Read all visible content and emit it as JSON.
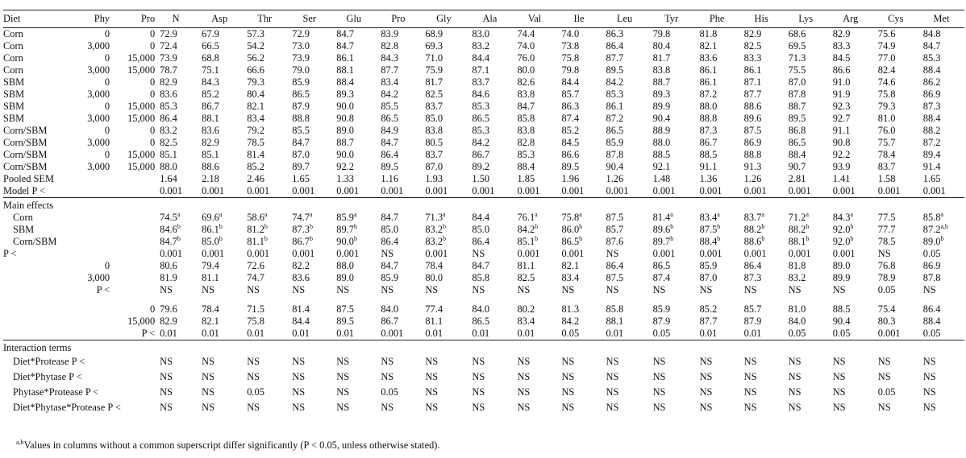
{
  "columns": [
    "Diet",
    "Phy",
    "Pro",
    "N",
    "Asp",
    "Thr",
    "Ser",
    "Glu",
    "Pro",
    "Gly",
    "Ala",
    "Val",
    "Ile",
    "Leu",
    "Tyr",
    "Phe",
    "His",
    "Lys",
    "Arg",
    "Cys",
    "Met"
  ],
  "treatment_rows": [
    [
      "Corn",
      "0",
      "0",
      "72.9",
      "67.9",
      "57.3",
      "72.9",
      "84.7",
      "83.9",
      "68.9",
      "83.0",
      "74.4",
      "74.0",
      "86.3",
      "79.8",
      "81.8",
      "82.9",
      "68.6",
      "82.9",
      "75.6",
      "84.8"
    ],
    [
      "Corn",
      "3,000",
      "0",
      "72.4",
      "66.5",
      "54.2",
      "73.0",
      "84.7",
      "82.8",
      "69.3",
      "83.2",
      "74.0",
      "73.8",
      "86.4",
      "80.4",
      "82.1",
      "82.5",
      "69.5",
      "83.3",
      "74.9",
      "84.7"
    ],
    [
      "Corn",
      "0",
      "15,000",
      "73.9",
      "68.8",
      "56.2",
      "73.9",
      "86.1",
      "84.3",
      "71.0",
      "84.4",
      "76.0",
      "75.8",
      "87.7",
      "81.7",
      "83.6",
      "83.3",
      "71.3",
      "84.5",
      "77.0",
      "85.3"
    ],
    [
      "Corn",
      "3,000",
      "15,000",
      "78.7",
      "75.1",
      "66.6",
      "79.0",
      "88.1",
      "87.7",
      "75.9",
      "87.1",
      "80.0",
      "79.8",
      "89.5",
      "83.8",
      "86.1",
      "86.1",
      "75.5",
      "86.6",
      "82.4",
      "88.4"
    ],
    [
      "SBM",
      "0",
      "0",
      "82.9",
      "84.3",
      "79.3",
      "85.9",
      "88.4",
      "83.4",
      "81.7",
      "83.7",
      "82.6",
      "84.4",
      "84.2",
      "88.7",
      "86.1",
      "87.1",
      "87.0",
      "91.0",
      "74.6",
      "86.2"
    ],
    [
      "SBM",
      "3,000",
      "0",
      "83.6",
      "85.2",
      "80.4",
      "86.5",
      "89.3",
      "84.2",
      "82.5",
      "84.6",
      "83.8",
      "85.7",
      "85.3",
      "89.3",
      "87.2",
      "87.7",
      "87.8",
      "91.9",
      "75.8",
      "86.9"
    ],
    [
      "SBM",
      "0",
      "15,000",
      "85.3",
      "86.7",
      "82.1",
      "87.9",
      "90.0",
      "85.5",
      "83.7",
      "85.3",
      "84.7",
      "86.3",
      "86.1",
      "89.9",
      "88.0",
      "88.6",
      "88.7",
      "92.3",
      "79.3",
      "87.3"
    ],
    [
      "SBM",
      "3,000",
      "15,000",
      "86.4",
      "88.1",
      "83.4",
      "88.8",
      "90.8",
      "86.5",
      "85.0",
      "86.5",
      "85.8",
      "87.4",
      "87.2",
      "90.4",
      "88.8",
      "89.6",
      "89.5",
      "92.7",
      "81.0",
      "88.4"
    ],
    [
      "Corn/SBM",
      "0",
      "0",
      "83.2",
      "83.6",
      "79.2",
      "85.5",
      "89.0",
      "84.9",
      "83.8",
      "85.3",
      "83.8",
      "85.2",
      "86.5",
      "88.9",
      "87.3",
      "87.5",
      "86.8",
      "91.1",
      "76.0",
      "88.2"
    ],
    [
      "Corn/SBM",
      "3,000",
      "0",
      "82.5",
      "82.9",
      "78.5",
      "84.7",
      "88.7",
      "84.7",
      "80.5",
      "84.2",
      "82.8",
      "84.5",
      "85.9",
      "88.0",
      "86.7",
      "86.9",
      "86.5",
      "90.8",
      "75.7",
      "87.2"
    ],
    [
      "Corn/SBM",
      "0",
      "15,000",
      "85.1",
      "85.1",
      "81.4",
      "87.0",
      "90.0",
      "86.4",
      "83.7",
      "86.7",
      "85.3",
      "86.6",
      "87.8",
      "88.5",
      "88.5",
      "88.8",
      "88.4",
      "92.2",
      "78.4",
      "89.4"
    ],
    [
      "Corn/SBM",
      "3,000",
      "15,000",
      "88.0",
      "88.6",
      "85.2",
      "89.7",
      "92.2",
      "89.5",
      "87.0",
      "89.2",
      "88.4",
      "89.5",
      "90.4",
      "92.1",
      "91.1",
      "91.3",
      "90.7",
      "93.9",
      "83.7",
      "91.4"
    ]
  ],
  "sem_row": {
    "label": "Pooled SEM",
    "values": [
      "1.64",
      "2.18",
      "2.46",
      "1.65",
      "1.33",
      "1.16",
      "1.93",
      "1.50",
      "1.85",
      "1.96",
      "1.26",
      "1.48",
      "1.36",
      "1.26",
      "2.81",
      "1.41",
      "1.58",
      "1.65"
    ]
  },
  "model_row": {
    "label": "Model P <",
    "values": [
      "0.001",
      "0.001",
      "0.001",
      "0.001",
      "0.001",
      "0.001",
      "0.001",
      "0.001",
      "0.001",
      "0.001",
      "0.001",
      "0.001",
      "0.001",
      "0.001",
      "0.001",
      "0.001",
      "0.001",
      "0.001"
    ]
  },
  "main_effects": {
    "heading": "Main effects",
    "diet_rows": [
      {
        "label": "Corn",
        "values": [
          [
            "74.5",
            "a"
          ],
          [
            "69.6",
            "a"
          ],
          [
            "58.6",
            "a"
          ],
          [
            "74.7",
            "a"
          ],
          [
            "85.9",
            "a"
          ],
          [
            "84.7",
            ""
          ],
          [
            "71.3",
            "a"
          ],
          [
            "84.4",
            ""
          ],
          [
            "76.1",
            "a"
          ],
          [
            "75.8",
            "a"
          ],
          [
            "87.5",
            ""
          ],
          [
            "81.4",
            "a"
          ],
          [
            "83.4",
            "a"
          ],
          [
            "83.7",
            "a"
          ],
          [
            "71.2",
            "a"
          ],
          [
            "84.3",
            "a"
          ],
          [
            "77.5",
            ""
          ],
          [
            "85.8",
            "a"
          ]
        ]
      },
      {
        "label": "SBM",
        "values": [
          [
            "84.6",
            "b"
          ],
          [
            "86.1",
            "b"
          ],
          [
            "81.2",
            "b"
          ],
          [
            "87.3",
            "b"
          ],
          [
            "89.7",
            "b"
          ],
          [
            "85.0",
            ""
          ],
          [
            "83.2",
            "b"
          ],
          [
            "85.0",
            ""
          ],
          [
            "84.2",
            "b"
          ],
          [
            "86.0",
            "b"
          ],
          [
            "85.7",
            ""
          ],
          [
            "89.6",
            "b"
          ],
          [
            "87.5",
            "b"
          ],
          [
            "88.2",
            "b"
          ],
          [
            "88.2",
            "b"
          ],
          [
            "92.0",
            "b"
          ],
          [
            "77.7",
            ""
          ],
          [
            "87.2",
            "a,b"
          ]
        ]
      },
      {
        "label": "Corn/SBM",
        "values": [
          [
            "84.7",
            "b"
          ],
          [
            "85.0",
            "b"
          ],
          [
            "81.1",
            "b"
          ],
          [
            "86.7",
            "b"
          ],
          [
            "90.0",
            "b"
          ],
          [
            "86.4",
            ""
          ],
          [
            "83.2",
            "b"
          ],
          [
            "86.4",
            ""
          ],
          [
            "85.1",
            "b"
          ],
          [
            "86.5",
            "b"
          ],
          [
            "87.6",
            ""
          ],
          [
            "89.7",
            "b"
          ],
          [
            "88.4",
            "b"
          ],
          [
            "88.6",
            "b"
          ],
          [
            "88.1",
            "b"
          ],
          [
            "92.0",
            "b"
          ],
          [
            "78.5",
            ""
          ],
          [
            "89.0",
            "b"
          ]
        ]
      }
    ],
    "diet_p": {
      "label": "P <",
      "values": [
        "0.001",
        "0.001",
        "0.001",
        "0.001",
        "0.001",
        "NS",
        "0.001",
        "NS",
        "0.001",
        "0.001",
        "NS",
        "0.001",
        "0.001",
        "0.001",
        "0.001",
        "0.001",
        "NS",
        "0.05"
      ]
    },
    "phytase_rows": [
      {
        "level": "0",
        "values": [
          "80.6",
          "79.4",
          "72.6",
          "82.2",
          "88.0",
          "84.7",
          "78.4",
          "84.7",
          "81.1",
          "82.1",
          "86.4",
          "86.5",
          "85.9",
          "86.4",
          "81.8",
          "89.0",
          "76.8",
          "86.9"
        ]
      },
      {
        "level": "3,000",
        "values": [
          "81.9",
          "81.1",
          "74.7",
          "83.6",
          "89.0",
          "85.9",
          "80.0",
          "85.8",
          "82.5",
          "83.4",
          "87.5",
          "87.4",
          "87.0",
          "87.3",
          "83.2",
          "89.9",
          "78.9",
          "87.8"
        ]
      }
    ],
    "phytase_p": {
      "label": "P <",
      "values": [
        "NS",
        "NS",
        "NS",
        "NS",
        "NS",
        "NS",
        "NS",
        "NS",
        "NS",
        "NS",
        "NS",
        "NS",
        "NS",
        "NS",
        "NS",
        "NS",
        "0.05",
        "NS"
      ]
    },
    "protease_rows": [
      {
        "level": "0",
        "values": [
          "79.6",
          "78.4",
          "71.5",
          "81.4",
          "87.5",
          "84.0",
          "77.4",
          "84.0",
          "80.2",
          "81.3",
          "85.8",
          "85.9",
          "85.2",
          "85.7",
          "81.0",
          "88.5",
          "75.4",
          "86.4"
        ]
      },
      {
        "level": "15,000",
        "values": [
          "82.9",
          "82.1",
          "75.8",
          "84.4",
          "89.5",
          "86.7",
          "81.1",
          "86.5",
          "83.4",
          "84.2",
          "88.1",
          "87.9",
          "87.7",
          "87.9",
          "84.0",
          "90.4",
          "80.3",
          "88.4"
        ]
      }
    ],
    "protease_p": {
      "label": "P <",
      "values": [
        "0.01",
        "0.01",
        "0.01",
        "0.01",
        "0.01",
        "0.001",
        "0.01",
        "0.01",
        "0.01",
        "0.05",
        "0.01",
        "0.05",
        "0.01",
        "0.01",
        "0.05",
        "0.05",
        "0.001",
        "0.05"
      ]
    }
  },
  "interactions": {
    "heading": "Interaction terms",
    "rows": [
      {
        "label": "Diet*Protease P <",
        "values": [
          "NS",
          "NS",
          "NS",
          "NS",
          "NS",
          "NS",
          "NS",
          "NS",
          "NS",
          "NS",
          "NS",
          "NS",
          "NS",
          "NS",
          "NS",
          "NS",
          "NS",
          "NS"
        ]
      },
      {
        "label": "Diet*Phytase P <",
        "values": [
          "NS",
          "NS",
          "NS",
          "NS",
          "NS",
          "NS",
          "NS",
          "NS",
          "NS",
          "NS",
          "NS",
          "NS",
          "NS",
          "NS",
          "NS",
          "NS",
          "NS",
          "NS"
        ]
      },
      {
        "label": "Phytase*Protease P <",
        "values": [
          "NS",
          "NS",
          "0.05",
          "NS",
          "NS",
          "0.05",
          "NS",
          "NS",
          "NS",
          "NS",
          "NS",
          "NS",
          "NS",
          "NS",
          "NS",
          "NS",
          "0.05",
          "NS"
        ]
      },
      {
        "label": "Diet*Phytase*Protease P <",
        "values": [
          "NS",
          "NS",
          "NS",
          "NS",
          "NS",
          "NS",
          "NS",
          "NS",
          "NS",
          "NS",
          "NS",
          "NS",
          "NS",
          "NS",
          "NS",
          "NS",
          "NS",
          "NS"
        ]
      }
    ]
  },
  "footnote": {
    "sup": "a,b",
    "text": "Values in columns without a common superscript differ significantly (P < 0.05, unless otherwise stated)."
  }
}
